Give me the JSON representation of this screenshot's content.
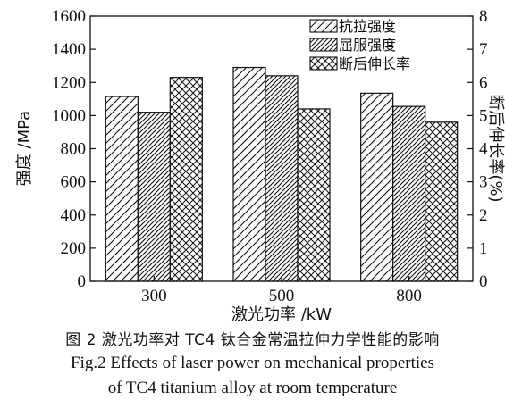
{
  "chart_data": {
    "type": "bar",
    "categories": [
      "300",
      "500",
      "800"
    ],
    "xlabel": "激光功率 /kW",
    "ylabel": "强度 /MPa",
    "y2label": "断后伸长率(%)",
    "ylim": [
      0,
      1600
    ],
    "y2lim": [
      0,
      8
    ],
    "yticks": [
      "0",
      "200",
      "400",
      "600",
      "800",
      "1000",
      "1200",
      "1400",
      "1600"
    ],
    "y2ticks": [
      "0",
      "1",
      "2",
      "3",
      "4",
      "5",
      "6",
      "7",
      "8"
    ],
    "legend_position": "top-right",
    "series": [
      {
        "name": "抗拉强度",
        "axis": "left",
        "pattern": "diagonal",
        "values": [
          1115,
          1290,
          1135
        ]
      },
      {
        "name": "屈服强度",
        "axis": "left",
        "pattern": "dense-diagonal",
        "values": [
          1020,
          1240,
          1055
        ]
      },
      {
        "name": "断后伸长率",
        "axis": "right",
        "pattern": "crosshatch",
        "values": [
          6.15,
          5.2,
          4.8
        ]
      }
    ]
  },
  "caption": {
    "cn": "图 2  激光功率对 TC4 钛合金常温拉伸力学性能的影响",
    "en_line1": "Fig.2  Effects of laser power on mechanical properties",
    "en_line2": "of TC4 titanium alloy at room temperature"
  }
}
